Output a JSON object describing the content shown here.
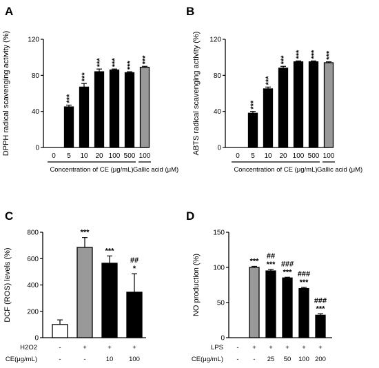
{
  "chart_data": [
    {
      "panel": "A",
      "type": "bar",
      "ylabel": "DPPH radical scavenging activity (%)",
      "ylim": [
        0,
        120
      ],
      "yticks": [
        0,
        40,
        80,
        120
      ],
      "categories": [
        "0",
        "5",
        "10",
        "20",
        "100",
        "500",
        "100"
      ],
      "values": [
        0,
        45,
        67,
        84,
        86,
        83,
        89
      ],
      "errors": [
        0,
        2,
        4,
        3,
        1,
        1,
        1
      ],
      "fills": [
        "#000000",
        "#000000",
        "#000000",
        "#000000",
        "#000000",
        "#000000",
        "#999999"
      ],
      "significance": [
        "",
        "***",
        "***",
        "***",
        "***",
        "***",
        "***"
      ],
      "x_groups": [
        {
          "label": "Concentration of CE (μg/mL)",
          "from": 0,
          "to": 5
        },
        {
          "label": "Gallic acid (μM)",
          "from": 6,
          "to": 6
        }
      ]
    },
    {
      "panel": "B",
      "type": "bar",
      "ylabel": "ABTS radical scavenging activity (%)",
      "ylim": [
        0,
        120
      ],
      "yticks": [
        0,
        40,
        80,
        120
      ],
      "categories": [
        "0",
        "5",
        "10",
        "20",
        "100",
        "500",
        "100"
      ],
      "values": [
        0,
        38,
        65,
        88,
        95,
        95,
        94
      ],
      "errors": [
        0,
        2,
        2,
        2,
        1,
        1,
        1
      ],
      "fills": [
        "#000000",
        "#000000",
        "#000000",
        "#000000",
        "#000000",
        "#000000",
        "#999999"
      ],
      "significance": [
        "",
        "***",
        "***",
        "***",
        "***",
        "***",
        "***"
      ],
      "x_groups": [
        {
          "label": "Concentration of CE (μg/mL)",
          "from": 0,
          "to": 5
        },
        {
          "label": "Gallic acid (μM)",
          "from": 6,
          "to": 6
        }
      ]
    },
    {
      "panel": "C",
      "type": "bar",
      "ylabel": "DCF (ROS) levels (%)",
      "ylim": [
        0,
        800
      ],
      "yticks": [
        0,
        200,
        400,
        600,
        800
      ],
      "values": [
        100,
        685,
        565,
        345
      ],
      "errors": [
        35,
        75,
        55,
        140
      ],
      "fills": [
        "#ffffff",
        "#999999",
        "#000000",
        "#000000"
      ],
      "significance": [
        [],
        [
          "***"
        ],
        [
          "***"
        ],
        [
          "##",
          "*"
        ]
      ],
      "factor_rows": [
        {
          "label": "H2O2",
          "values": [
            "-",
            "+",
            "+",
            "+"
          ]
        },
        {
          "label": "CE(μg/mL)",
          "values": [
            "-",
            "-",
            "10",
            "100"
          ]
        }
      ]
    },
    {
      "panel": "D",
      "type": "bar",
      "ylabel": "NO production (%)",
      "ylim": [
        0,
        150
      ],
      "yticks": [
        0,
        50,
        100,
        150
      ],
      "values": [
        0,
        100,
        95,
        85,
        70,
        32
      ],
      "errors": [
        0,
        1.5,
        2,
        1,
        1.5,
        2
      ],
      "fills": [
        "#000000",
        "#999999",
        "#000000",
        "#000000",
        "#000000",
        "#000000"
      ],
      "significance": [
        [],
        [
          "***"
        ],
        [
          "##",
          "***"
        ],
        [
          "###",
          "***"
        ],
        [
          "###",
          "***"
        ],
        [
          "###",
          "***"
        ]
      ],
      "factor_rows": [
        {
          "label": "LPS",
          "values": [
            "-",
            "+",
            "+",
            "+",
            "+",
            "+"
          ]
        },
        {
          "label": "CE(μg/mL)",
          "values": [
            "-",
            "-",
            "25",
            "50",
            "100",
            "200"
          ]
        }
      ]
    }
  ]
}
